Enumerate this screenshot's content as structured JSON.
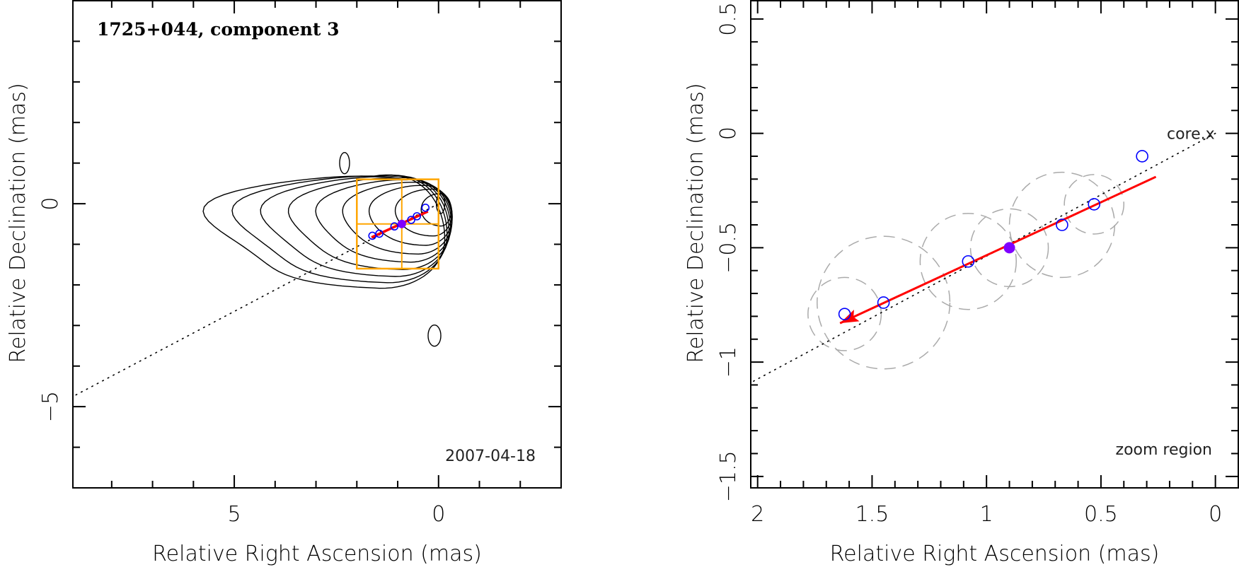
{
  "chart_data": [
    {
      "type": "contour",
      "panel": "left",
      "title": "1725+044, component 3",
      "annotation": "2007-04-18",
      "xlabel": "Relative Right Ascension (mas)",
      "ylabel": "Relative Declination (mas)",
      "xlim": [
        8.95,
        -3.0
      ],
      "ylim": [
        -7.0,
        5.0
      ],
      "x_ticks": [
        {
          "v": 5,
          "label": "5"
        },
        {
          "v": 0,
          "label": "0"
        }
      ],
      "y_ticks": [
        {
          "v": 0,
          "label": "0"
        },
        {
          "v": -5,
          "label": "−5"
        }
      ],
      "x_minor_step": 1,
      "y_minor_step": 1,
      "contour_levels": 9,
      "zoom_box": {
        "ra": [
          2.0,
          0.0
        ],
        "dec": [
          -1.6,
          0.6
        ],
        "mid_ra": 0.9,
        "mid_dec": -0.5
      },
      "reference_line": {
        "from": [
          0,
          0
        ],
        "to": [
          8.95,
          -4.75
        ],
        "style": "dotted"
      },
      "components": [
        {
          "ra": 0.32,
          "dec": -0.1,
          "filled": false
        },
        {
          "ra": 0.53,
          "dec": -0.31,
          "filled": false
        },
        {
          "ra": 0.67,
          "dec": -0.4,
          "filled": false
        },
        {
          "ra": 0.9,
          "dec": -0.5,
          "filled": true
        },
        {
          "ra": 1.08,
          "dec": -0.56,
          "filled": false
        },
        {
          "ra": 1.45,
          "dec": -0.74,
          "filled": false
        },
        {
          "ra": 1.62,
          "dec": -0.79,
          "filled": false
        }
      ],
      "trajectory_arrow": {
        "from": [
          0.26,
          -0.19
        ],
        "to": [
          1.64,
          -0.83
        ]
      },
      "colors": {
        "contour": "#000000",
        "box": "#ffa500",
        "arrow": "#ff0000",
        "marker": "#0000ff",
        "marker_filled": "#7f00ff"
      }
    },
    {
      "type": "scatter",
      "panel": "right",
      "annotation": "zoom region",
      "core_label": "core.x",
      "xlabel": "Relative Right Ascension (mas)",
      "ylabel": "Relative Declination (mas)",
      "xlim": [
        2.03,
        -0.1
      ],
      "ylim": [
        -1.55,
        0.58
      ],
      "x_ticks": [
        {
          "v": 2,
          "label": "2"
        },
        {
          "v": 1.5,
          "label": "1.5"
        },
        {
          "v": 1,
          "label": "1"
        },
        {
          "v": 0.5,
          "label": "0.5"
        },
        {
          "v": 0,
          "label": "0"
        }
      ],
      "y_ticks": [
        {
          "v": 0.5,
          "label": "0.5"
        },
        {
          "v": 0,
          "label": "0"
        },
        {
          "v": -0.5,
          "label": "−0.5"
        },
        {
          "v": -1,
          "label": "−1"
        },
        {
          "v": -1.5,
          "label": "−1.5"
        }
      ],
      "x_minor_step": 0.1,
      "y_minor_step": 0.1,
      "reference_line": {
        "from": [
          0,
          0
        ],
        "to": [
          2.03,
          -1.09
        ],
        "style": "dotted"
      },
      "components": [
        {
          "ra": 0.32,
          "dec": -0.1,
          "filled": false,
          "size": 0.0
        },
        {
          "ra": 0.53,
          "dec": -0.31,
          "filled": false,
          "size": 0.13
        },
        {
          "ra": 0.67,
          "dec": -0.4,
          "filled": false,
          "size": 0.23
        },
        {
          "ra": 0.9,
          "dec": -0.5,
          "filled": true,
          "size": 0.17
        },
        {
          "ra": 1.08,
          "dec": -0.56,
          "filled": false,
          "size": 0.21
        },
        {
          "ra": 1.45,
          "dec": -0.74,
          "filled": false,
          "size": 0.29
        },
        {
          "ra": 1.62,
          "dec": -0.79,
          "filled": false,
          "size": 0.16
        }
      ],
      "trajectory_arrow": {
        "from": [
          0.26,
          -0.19
        ],
        "to": [
          1.64,
          -0.83
        ]
      },
      "colors": {
        "circle": "#aaaaaa",
        "arrow": "#ff0000",
        "marker": "#0000ff",
        "marker_filled": "#7f00ff"
      }
    }
  ]
}
